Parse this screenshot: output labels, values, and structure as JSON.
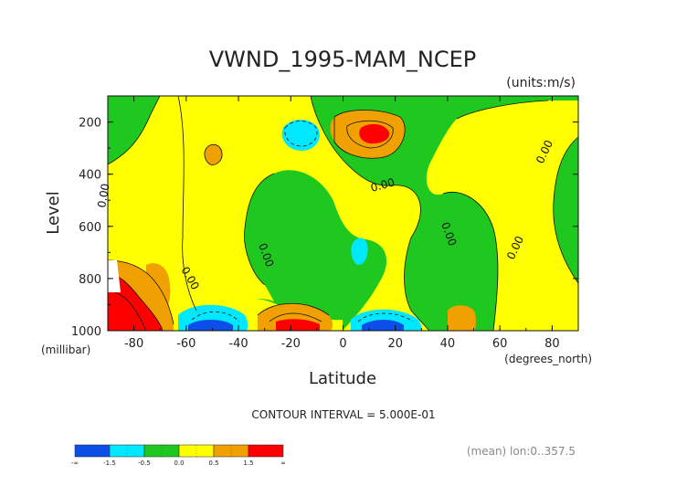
{
  "chart_data": {
    "type": "heatmap",
    "title": "VWND_1995-MAM_NCEP",
    "units": "(units:m/s)",
    "xlabel": "Latitude",
    "ylabel": "Level",
    "x_unit": "(degrees_north)",
    "y_unit": "(millibar)",
    "xlim": [
      -90,
      90
    ],
    "ylim": [
      1000,
      100
    ],
    "x_ticks": [
      "-80",
      "-60",
      "-40",
      "-20",
      "0",
      "20",
      "40",
      "60",
      "80"
    ],
    "x_tick_values": [
      -80,
      -60,
      -40,
      -20,
      0,
      20,
      40,
      60,
      80
    ],
    "y_ticks": [
      "200",
      "400",
      "600",
      "800",
      "1000"
    ],
    "y_tick_values": [
      200,
      400,
      600,
      800,
      1000
    ],
    "contour_interval_text": "CONTOUR INTERVAL = 5.000E-01",
    "contour_labels": [
      "0.00",
      "0.00",
      "0.00",
      "0.00",
      "0.00",
      "0.00",
      "0.00"
    ],
    "footer": "(mean) lon:0..357.5",
    "colorbar": {
      "labels": [
        "-∞",
        "-1.5",
        "-0.5",
        "0.0",
        "0.5",
        "1.5",
        "∞"
      ],
      "colors": [
        "#0b4fe8",
        "#00e8ff",
        "#1ec81e",
        "#ffff00",
        "#f0a000",
        "#ff0000"
      ]
    },
    "colors": {
      "strong_negative": "#0b4fe8",
      "negative": "#00e8ff",
      "near_zero_negative": "#1ec81e",
      "near_zero_positive": "#ffff00",
      "positive": "#f0a000",
      "strong_positive": "#ff0000"
    }
  }
}
